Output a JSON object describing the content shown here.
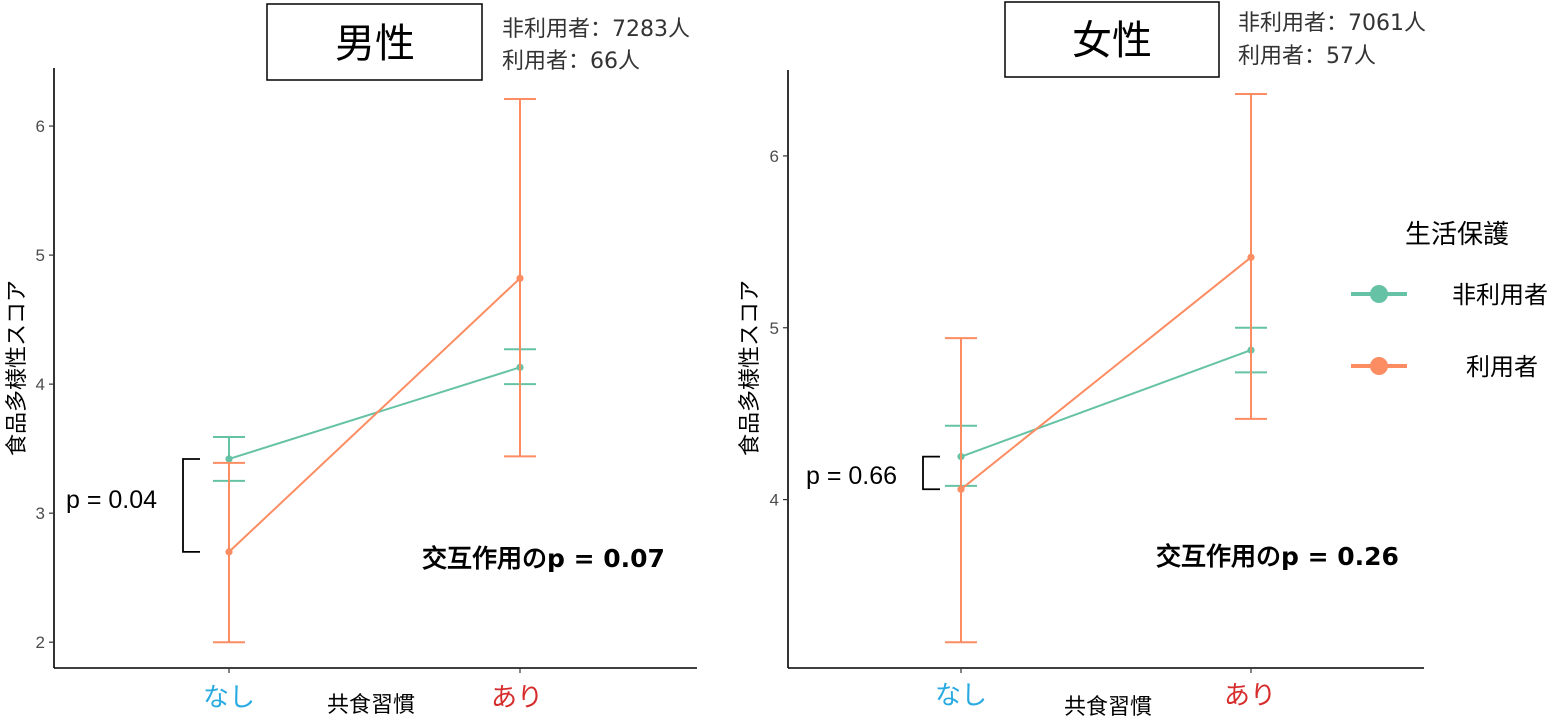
{
  "legend": {
    "title": "生活保護",
    "items": [
      {
        "label": "非利用者",
        "color": "#66c2a5"
      },
      {
        "label": "利用者",
        "color": "#fc8d62"
      }
    ]
  },
  "category_colors": {
    "なし": "#29abe2",
    "あり": "#d62c2c"
  },
  "chart_data": [
    {
      "type": "line",
      "title": "男性",
      "annotation_counts": [
        "非利用者：7283人",
        "利用者：66人"
      ],
      "xlabel": "共食習慣",
      "ylabel": "食品多様性スコア",
      "categories": [
        "なし",
        "あり"
      ],
      "ylim": [
        1.8,
        6.45
      ],
      "yticks": [
        2,
        3,
        4,
        5,
        6
      ],
      "grid": false,
      "series": [
        {
          "name": "非利用者",
          "color": "#66c2a5",
          "values": [
            3.42,
            4.13
          ],
          "lower": [
            3.25,
            4.0
          ],
          "upper": [
            3.59,
            4.27
          ]
        },
        {
          "name": "利用者",
          "color": "#fc8d62",
          "values": [
            2.7,
            4.82
          ],
          "lower": [
            2.0,
            3.44
          ],
          "upper": [
            3.39,
            6.21
          ]
        }
      ],
      "p_bracket": {
        "label": "p = 0.04",
        "category": "なし"
      },
      "interaction_label": "交互作用のp = 0.07"
    },
    {
      "type": "line",
      "title": "女性",
      "annotation_counts": [
        "非利用者：7061人",
        "利用者：57人"
      ],
      "xlabel": "共食習慣",
      "ylabel": "食品多様性スコア",
      "categories": [
        "なし",
        "あり"
      ],
      "ylim": [
        3.02,
        6.5
      ],
      "yticks": [
        4,
        5,
        6
      ],
      "grid": false,
      "series": [
        {
          "name": "非利用者",
          "color": "#66c2a5",
          "values": [
            4.25,
            4.87
          ],
          "lower": [
            4.08,
            4.74
          ],
          "upper": [
            4.43,
            5.0
          ]
        },
        {
          "name": "利用者",
          "color": "#fc8d62",
          "values": [
            4.06,
            5.41
          ],
          "lower": [
            3.17,
            4.47
          ],
          "upper": [
            4.94,
            6.36
          ]
        }
      ],
      "p_bracket": {
        "label": "p = 0.66",
        "category": "なし"
      },
      "interaction_label": "交互作用のp = 0.26"
    }
  ]
}
